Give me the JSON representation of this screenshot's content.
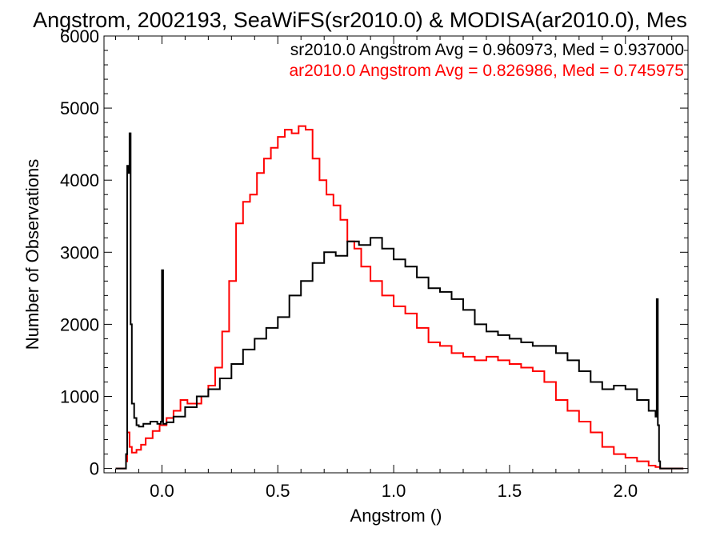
{
  "chart_data": {
    "type": "line",
    "title": "Angstrom, 2002193, SeaWiFS(sr2010.0) & MODISA(ar2010.0), Mes",
    "xlabel": "Angstrom ()",
    "ylabel": "Number of Observations",
    "xlim": [
      -0.25,
      2.27
    ],
    "ylim": [
      -60,
      6000
    ],
    "xticks": [
      0.0,
      0.5,
      1.0,
      1.5,
      2.0
    ],
    "xtick_labels": [
      "0.0",
      "0.5",
      "1.0",
      "1.5",
      "2.0"
    ],
    "yticks": [
      0,
      1000,
      2000,
      3000,
      4000,
      5000,
      6000
    ],
    "ytick_labels": [
      "0",
      "1000",
      "2000",
      "3000",
      "4000",
      "5000",
      "6000"
    ],
    "grid": false,
    "legend_position": "top-right",
    "series": [
      {
        "name": "sr2010.0 Angstrom Avg = 0.960973, Med = 0.937000",
        "color": "#000000",
        "x": [
          -0.2,
          -0.16,
          -0.155,
          -0.15,
          -0.145,
          -0.14,
          -0.135,
          -0.13,
          -0.12,
          -0.11,
          -0.1,
          -0.08,
          -0.05,
          -0.02,
          -0.005,
          0.0,
          0.005,
          0.02,
          0.05,
          0.1,
          0.15,
          0.2,
          0.25,
          0.3,
          0.35,
          0.4,
          0.45,
          0.5,
          0.55,
          0.6,
          0.65,
          0.7,
          0.75,
          0.8,
          0.85,
          0.9,
          0.95,
          1.0,
          1.05,
          1.1,
          1.15,
          1.2,
          1.25,
          1.3,
          1.35,
          1.4,
          1.45,
          1.5,
          1.55,
          1.6,
          1.65,
          1.7,
          1.75,
          1.8,
          1.85,
          1.9,
          1.95,
          2.0,
          2.05,
          2.1,
          2.13,
          2.135,
          2.14,
          2.145,
          2.15,
          2.2,
          2.25
        ],
        "y": [
          0,
          0,
          200,
          4200,
          4100,
          4650,
          2000,
          900,
          700,
          600,
          580,
          620,
          650,
          620,
          650,
          2750,
          620,
          640,
          720,
          850,
          1000,
          1100,
          1250,
          1450,
          1650,
          1800,
          1950,
          2100,
          2400,
          2600,
          2850,
          3000,
          2950,
          3150,
          3100,
          3200,
          3050,
          2900,
          2800,
          2650,
          2500,
          2450,
          2350,
          2200,
          2000,
          1900,
          1850,
          1800,
          1750,
          1700,
          1700,
          1600,
          1500,
          1350,
          1200,
          1100,
          1150,
          1100,
          950,
          800,
          720,
          2350,
          600,
          100,
          0,
          0,
          0
        ]
      },
      {
        "name": "ar2010.0 Angstrom Avg = 0.826986, Med = 0.745975",
        "color": "#ff0000",
        "x": [
          -0.2,
          -0.16,
          -0.155,
          -0.15,
          -0.14,
          -0.13,
          -0.11,
          -0.09,
          -0.07,
          -0.04,
          -0.01,
          0.02,
          0.05,
          0.08,
          0.11,
          0.14,
          0.17,
          0.2,
          0.23,
          0.26,
          0.29,
          0.32,
          0.35,
          0.38,
          0.41,
          0.44,
          0.47,
          0.5,
          0.53,
          0.56,
          0.59,
          0.62,
          0.65,
          0.68,
          0.71,
          0.74,
          0.77,
          0.8,
          0.83,
          0.86,
          0.9,
          0.95,
          1.0,
          1.05,
          1.1,
          1.15,
          1.2,
          1.25,
          1.3,
          1.35,
          1.4,
          1.45,
          1.5,
          1.55,
          1.6,
          1.65,
          1.7,
          1.75,
          1.8,
          1.85,
          1.9,
          1.95,
          2.0,
          2.05,
          2.1,
          2.13,
          2.15,
          2.2,
          2.25
        ],
        "y": [
          0,
          0,
          100,
          500,
          300,
          220,
          260,
          330,
          420,
          520,
          600,
          700,
          800,
          950,
          900,
          900,
          1000,
          1150,
          1400,
          1900,
          2600,
          3400,
          3700,
          3800,
          4100,
          4300,
          4450,
          4600,
          4700,
          4650,
          4750,
          4700,
          4300,
          4000,
          3800,
          3650,
          3450,
          3150,
          3050,
          2800,
          2600,
          2400,
          2250,
          2150,
          1950,
          1750,
          1700,
          1600,
          1550,
          1500,
          1550,
          1500,
          1450,
          1400,
          1350,
          1200,
          950,
          800,
          650,
          500,
          300,
          200,
          150,
          100,
          40,
          20,
          0,
          0,
          0
        ]
      }
    ]
  }
}
